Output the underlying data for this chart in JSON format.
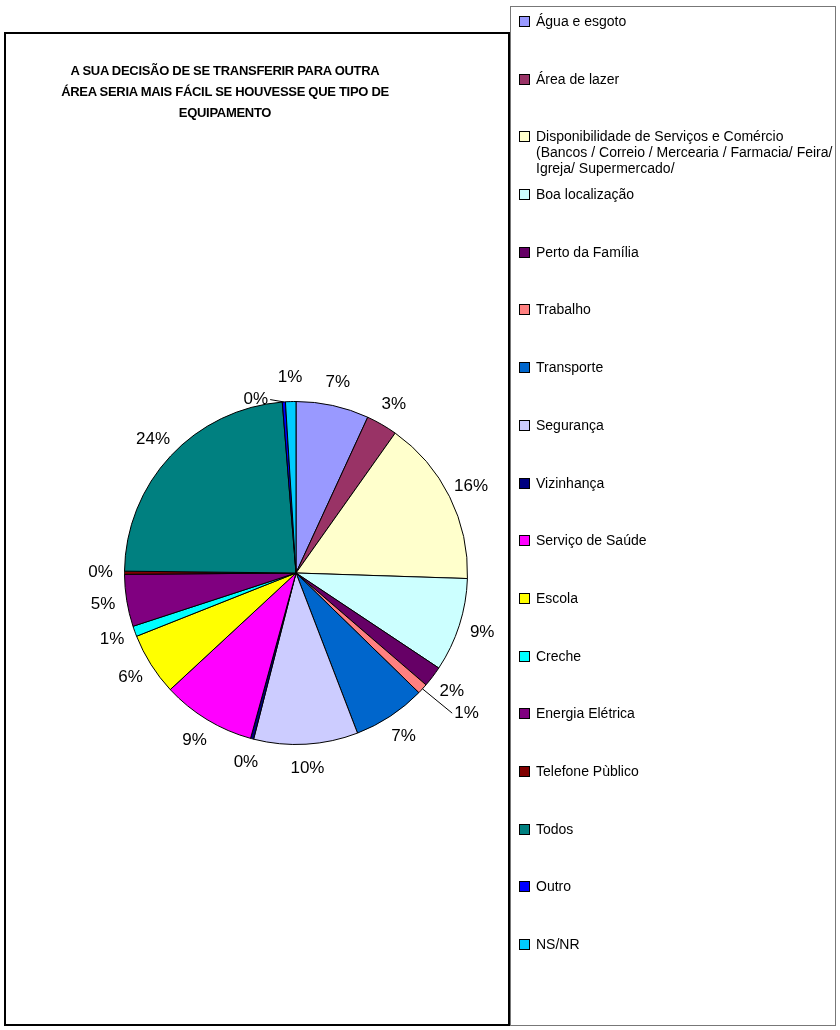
{
  "chart_data": {
    "type": "pie",
    "title": "A SUA DECISÃO DE SE TRANSFERIR PARA OUTRA ÁREA SERIA MAIS FÁCIL SE HOUVESSE QUE TIPO DE EQUIPAMENTO",
    "categories": [
      "Água e esgoto",
      "Área de lazer",
      "Disponibilidade de Serviços e Comércio (Bancos / Correio / Mercearia / Farmacia/ Feira/ Igreja/ Supermercado/",
      "Boa localização",
      "Perto da Família",
      "Trabalho",
      "Transporte",
      "Segurança",
      "Vizinhança",
      "Serviço de Saúde",
      "Escola",
      "Creche",
      "Energia Elétrica",
      "Telefone Pùblico",
      "Todos",
      "Outro",
      "NS/NR"
    ],
    "values": [
      7,
      3,
      16,
      9,
      2,
      1,
      7,
      10,
      0.3,
      9,
      6,
      1,
      5,
      0.3,
      24,
      0.3,
      1
    ],
    "value_labels": [
      "7%",
      "3%",
      "16%",
      "9%",
      "2%",
      "1%",
      "7%",
      "10%",
      "0%",
      "9%",
      "6%",
      "1%",
      "5%",
      "0%",
      "24%",
      "0%",
      "1%"
    ],
    "colors": [
      "#9999ff",
      "#993366",
      "#ffffcc",
      "#ccffff",
      "#660066",
      "#ff8080",
      "#0066cc",
      "#ccccff",
      "#000080",
      "#ff00ff",
      "#ffff00",
      "#00ffff",
      "#800080",
      "#800000",
      "#008080",
      "#0000ff",
      "#00ccff"
    ],
    "legend": "right"
  }
}
